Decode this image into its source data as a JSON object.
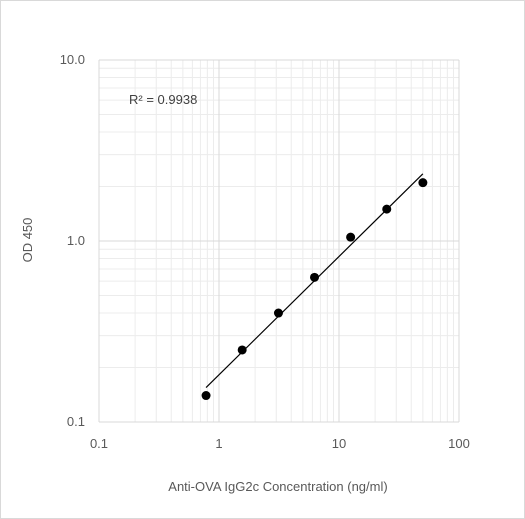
{
  "chart_data": {
    "type": "scatter",
    "title": "",
    "xlabel": "Anti-OVA IgG2c Concentration (ng/ml)",
    "ylabel": "OD 450",
    "x_scale": "log",
    "y_scale": "log",
    "xlim": [
      0.1,
      100
    ],
    "ylim": [
      0.1,
      10
    ],
    "x_ticks": [
      "0.1",
      "1",
      "10",
      "100"
    ],
    "y_ticks": [
      "0.1",
      "1.0",
      "10.0"
    ],
    "grid": "major and minor",
    "legend": "none",
    "series": [
      {
        "x": [
          0.78,
          1.56,
          3.13,
          6.25,
          12.5,
          25,
          50
        ],
        "y": [
          0.14,
          0.25,
          0.4,
          0.63,
          1.05,
          1.5,
          2.1
        ]
      }
    ],
    "trendline": {
      "x": [
        0.78,
        50
      ],
      "y": [
        0.155,
        2.35
      ]
    },
    "annotation": "R² = 0.9938",
    "colors": {
      "marker": "#000000",
      "trendline": "#000000",
      "major_grid": "#d9d9d9",
      "minor_grid": "#ececec",
      "text": "#595959"
    }
  }
}
